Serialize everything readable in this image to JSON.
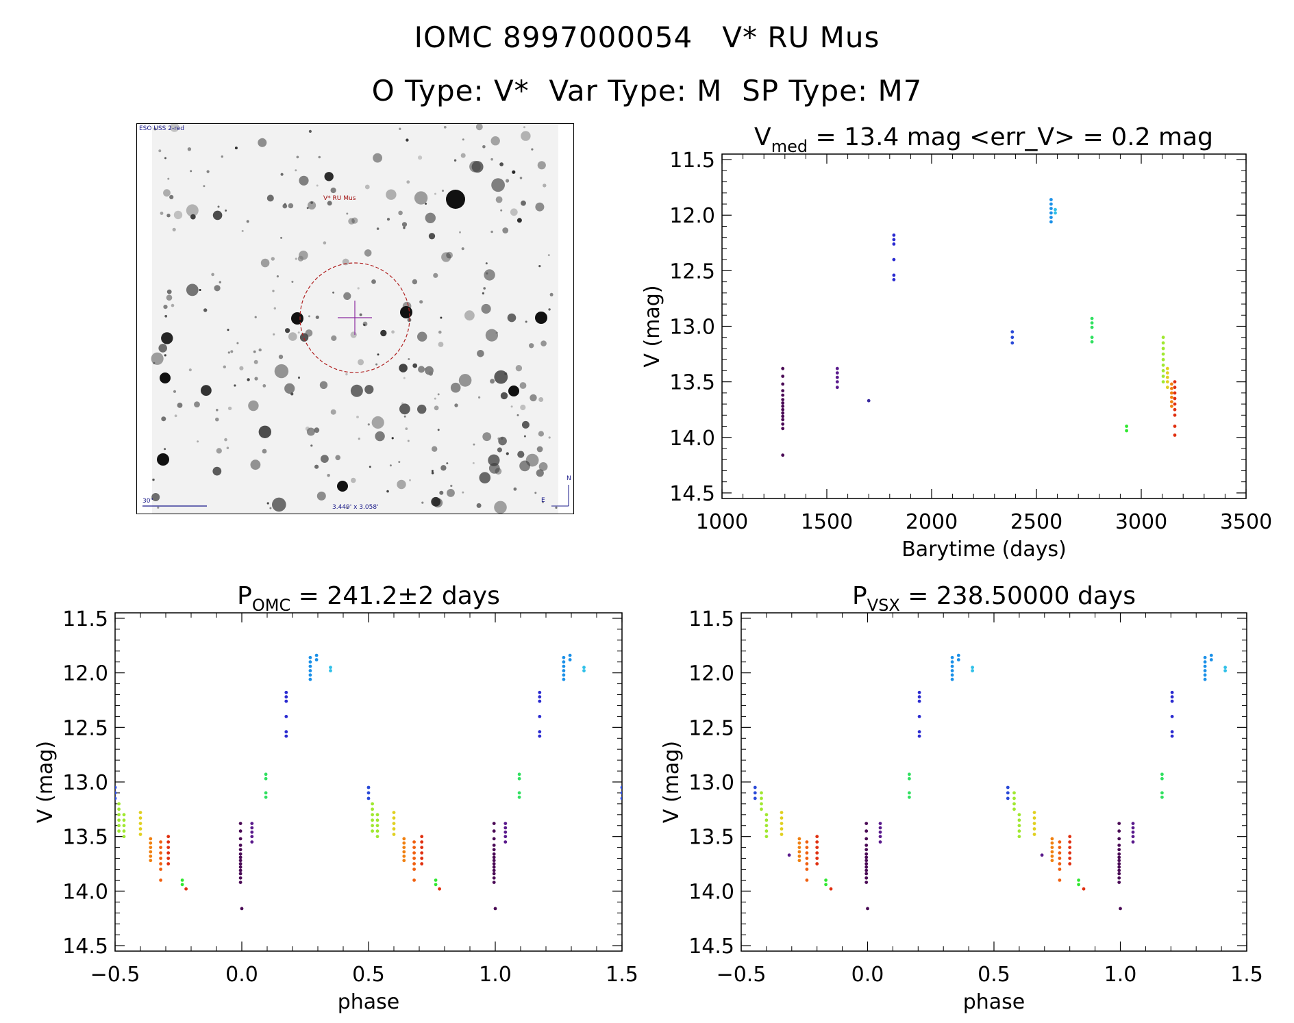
{
  "header": {
    "line1_id": "IOMC 8997000054",
    "line1_name": "V* RU Mus",
    "line2_otype": "O Type: V*",
    "line2_vartype": "Var Type: M",
    "line2_sptype": "SP Type: M7"
  },
  "sky_image": {
    "survey_label": "ESO USS 2-red",
    "target_label": "V* RU Mus",
    "scale_label": "30\"",
    "size_label": "3.449' x 3.058'",
    "north_label": "N",
    "east_label": "E"
  },
  "chart_data": [
    {
      "id": "lightcurve",
      "type": "scatter",
      "title_main": "V",
      "title_sub": "med",
      "title_rest": " = 13.4 mag <err_V> = 0.2 mag",
      "xlabel": "Barytime (days)",
      "ylabel": "V (mag)",
      "xlim": [
        1000,
        3500
      ],
      "ylim": [
        14.55,
        11.45
      ],
      "xticks": [
        1000,
        1500,
        2000,
        2500,
        3000,
        3500
      ],
      "xtick_labels": [
        "1000",
        "1500",
        "2000",
        "2500",
        "3000",
        "3500"
      ],
      "yticks": [
        11.5,
        12.0,
        12.5,
        13.0,
        13.5,
        14.0,
        14.5
      ],
      "ytick_labels": [
        "11.5",
        "12.0",
        "12.5",
        "13.0",
        "13.5",
        "14.0",
        "14.5"
      ],
      "groups": [
        {
          "x": 1290,
          "color": "#4a0a55",
          "y": [
            13.38,
            13.45,
            13.52,
            13.58,
            13.62,
            13.66,
            13.69,
            13.72,
            13.75,
            13.78,
            13.81,
            13.84,
            13.88,
            13.92,
            14.16
          ]
        },
        {
          "x": 1550,
          "color": "#5a1a8c",
          "y": [
            13.38,
            13.42,
            13.46,
            13.5,
            13.55
          ]
        },
        {
          "x": 1700,
          "color": "#3a2aa0",
          "y": [
            13.67
          ]
        },
        {
          "x": 1820,
          "color": "#2a2ad0",
          "y": [
            12.18,
            12.22,
            12.26,
            12.4,
            12.54,
            12.58
          ]
        },
        {
          "x": 2385,
          "color": "#2a4ad8",
          "y": [
            13.05,
            13.1,
            13.15
          ]
        },
        {
          "x": 2570,
          "color": "#1a90e8",
          "y": [
            11.86,
            11.9,
            11.94,
            11.98,
            12.02,
            12.06
          ]
        },
        {
          "x": 2590,
          "color": "#30c0e8",
          "y": [
            11.95,
            11.98
          ]
        },
        {
          "x": 2765,
          "color": "#30e060",
          "y": [
            12.93,
            12.97,
            13.01,
            13.1,
            13.14
          ]
        },
        {
          "x": 2930,
          "color": "#30e830",
          "y": [
            13.9,
            13.94
          ]
        },
        {
          "x": 3105,
          "color": "#a0e830",
          "y": [
            13.1,
            13.15,
            13.2,
            13.25,
            13.3,
            13.35,
            13.4,
            13.45,
            13.5
          ]
        },
        {
          "x": 3125,
          "color": "#e0d020",
          "y": [
            13.38,
            13.42,
            13.46,
            13.5,
            13.55
          ]
        },
        {
          "x": 3145,
          "color": "#f08010",
          "y": [
            13.52,
            13.56,
            13.6,
            13.64,
            13.68,
            13.72
          ]
        },
        {
          "x": 3160,
          "color": "#e03010",
          "y": [
            13.5,
            13.55,
            13.6,
            13.65,
            13.7,
            13.75,
            13.8,
            13.9,
            13.98
          ]
        }
      ]
    },
    {
      "id": "phase_omc",
      "type": "scatter",
      "title_main": "P",
      "title_sub": "OMC",
      "title_rest": " = 241.2±2 days",
      "xlabel": "phase",
      "ylabel": "V (mag)",
      "xlim": [
        -0.5,
        1.5
      ],
      "ylim": [
        14.55,
        11.45
      ],
      "xticks": [
        -0.5,
        0.0,
        0.5,
        1.0,
        1.5
      ],
      "xtick_labels": [
        "−0.5",
        "0.0",
        "0.5",
        "1.0",
        "1.5"
      ],
      "yticks": [
        11.5,
        12.0,
        12.5,
        13.0,
        13.5,
        14.0,
        14.5
      ],
      "ytick_labels": [
        "11.5",
        "12.0",
        "12.5",
        "13.0",
        "13.5",
        "14.0",
        "14.5"
      ],
      "period_repeat": 1.0,
      "groups": [
        {
          "x": -0.005,
          "color": "#4a0a55",
          "y": [
            13.38,
            13.45,
            13.52,
            13.58,
            13.62,
            13.66,
            13.69,
            13.72,
            13.75,
            13.78,
            13.81,
            13.84,
            13.88,
            13.92
          ]
        },
        {
          "x": 0.0,
          "color": "#4a0a55",
          "y": [
            14.16
          ]
        },
        {
          "x": 0.04,
          "color": "#5a1a8c",
          "y": [
            13.38,
            13.42,
            13.46,
            13.5,
            13.55
          ]
        },
        {
          "x": 0.175,
          "color": "#2a2ad0",
          "y": [
            12.18,
            12.22,
            12.26,
            12.4,
            12.54,
            12.58
          ]
        },
        {
          "x": 0.27,
          "color": "#1a90e8",
          "y": [
            11.86,
            11.9,
            11.94,
            11.98,
            12.02,
            12.06
          ]
        },
        {
          "x": 0.295,
          "color": "#1a90e8",
          "y": [
            11.84,
            11.88
          ]
        },
        {
          "x": 0.35,
          "color": "#30c0e8",
          "y": [
            11.95,
            11.98
          ]
        },
        {
          "x": 0.095,
          "color": "#30e060",
          "y": [
            12.93,
            12.97,
            13.1,
            13.14
          ]
        },
        {
          "x": 0.5,
          "color": "#2a4ad8",
          "y": [
            13.05,
            13.1,
            13.15
          ]
        },
        {
          "x": 0.515,
          "color": "#a0e830",
          "y": [
            13.2,
            13.25,
            13.3,
            13.35,
            13.4,
            13.45
          ]
        },
        {
          "x": 0.535,
          "color": "#a0e830",
          "y": [
            13.3,
            13.35,
            13.4,
            13.45,
            13.5
          ]
        },
        {
          "x": 0.6,
          "color": "#e0d020",
          "y": [
            13.28,
            13.33,
            13.38,
            13.43,
            13.48
          ]
        },
        {
          "x": 0.64,
          "color": "#f08010",
          "y": [
            13.52,
            13.56,
            13.6,
            13.64,
            13.68,
            13.72
          ]
        },
        {
          "x": 0.68,
          "color": "#f06010",
          "y": [
            13.55,
            13.6,
            13.65,
            13.7,
            13.75,
            13.8,
            13.9
          ]
        },
        {
          "x": 0.71,
          "color": "#e03010",
          "y": [
            13.5,
            13.55,
            13.6,
            13.65,
            13.7,
            13.75
          ]
        },
        {
          "x": 0.765,
          "color": "#30e830",
          "y": [
            13.9,
            13.94
          ]
        },
        {
          "x": 0.78,
          "color": "#e03010",
          "y": [
            13.98
          ]
        }
      ]
    },
    {
      "id": "phase_vsx",
      "type": "scatter",
      "title_main": "P",
      "title_sub": "VSX",
      "title_rest": " = 238.50000 days",
      "xlabel": "phase",
      "ylabel": "V (mag)",
      "xlim": [
        -0.5,
        1.5
      ],
      "ylim": [
        14.55,
        11.45
      ],
      "xticks": [
        -0.5,
        0.0,
        0.5,
        1.0,
        1.5
      ],
      "xtick_labels": [
        "−0.5",
        "0.0",
        "0.5",
        "1.0",
        "1.5"
      ],
      "yticks": [
        11.5,
        12.0,
        12.5,
        13.0,
        13.5,
        14.0,
        14.5
      ],
      "ytick_labels": [
        "11.5",
        "12.0",
        "12.5",
        "13.0",
        "13.5",
        "14.0",
        "14.5"
      ],
      "period_repeat": 1.0,
      "groups": [
        {
          "x": -0.005,
          "color": "#4a0a55",
          "y": [
            13.38,
            13.45,
            13.52,
            13.58,
            13.62,
            13.66,
            13.69,
            13.72,
            13.75,
            13.78,
            13.81,
            13.84,
            13.88,
            13.92
          ]
        },
        {
          "x": 0.0,
          "color": "#4a0a55",
          "y": [
            14.16
          ]
        },
        {
          "x": 0.05,
          "color": "#5a1a8c",
          "y": [
            13.38,
            13.42,
            13.46,
            13.5,
            13.55
          ]
        },
        {
          "x": 0.205,
          "color": "#2a2ad0",
          "y": [
            12.18,
            12.22,
            12.26,
            12.4,
            12.54,
            12.58
          ]
        },
        {
          "x": 0.335,
          "color": "#1a90e8",
          "y": [
            11.86,
            11.9,
            11.94,
            11.98,
            12.02,
            12.06
          ]
        },
        {
          "x": 0.36,
          "color": "#1a90e8",
          "y": [
            11.84,
            11.88
          ]
        },
        {
          "x": 0.415,
          "color": "#30c0e8",
          "y": [
            11.95,
            11.98
          ]
        },
        {
          "x": 0.165,
          "color": "#30e060",
          "y": [
            12.93,
            12.97,
            13.1,
            13.14
          ]
        },
        {
          "x": 0.555,
          "color": "#2a4ad8",
          "y": [
            13.05,
            13.1,
            13.15
          ]
        },
        {
          "x": 0.58,
          "color": "#a0e830",
          "y": [
            13.1,
            13.15,
            13.2,
            13.25
          ]
        },
        {
          "x": 0.6,
          "color": "#a0e830",
          "y": [
            13.3,
            13.35,
            13.4,
            13.45,
            13.5
          ]
        },
        {
          "x": 0.66,
          "color": "#e0d020",
          "y": [
            13.28,
            13.33,
            13.38,
            13.43,
            13.48
          ]
        },
        {
          "x": 0.69,
          "color": "#5a1a8c",
          "y": [
            13.67
          ]
        },
        {
          "x": 0.73,
          "color": "#f08010",
          "y": [
            13.52,
            13.56,
            13.6,
            13.64,
            13.68,
            13.72
          ]
        },
        {
          "x": 0.76,
          "color": "#f06010",
          "y": [
            13.55,
            13.6,
            13.65,
            13.7,
            13.75,
            13.8,
            13.9
          ]
        },
        {
          "x": 0.8,
          "color": "#e03010",
          "y": [
            13.5,
            13.55,
            13.6,
            13.65,
            13.7,
            13.75
          ]
        },
        {
          "x": 0.835,
          "color": "#30e830",
          "y": [
            13.9,
            13.94
          ]
        },
        {
          "x": 0.855,
          "color": "#e03010",
          "y": [
            13.98
          ]
        }
      ]
    }
  ]
}
